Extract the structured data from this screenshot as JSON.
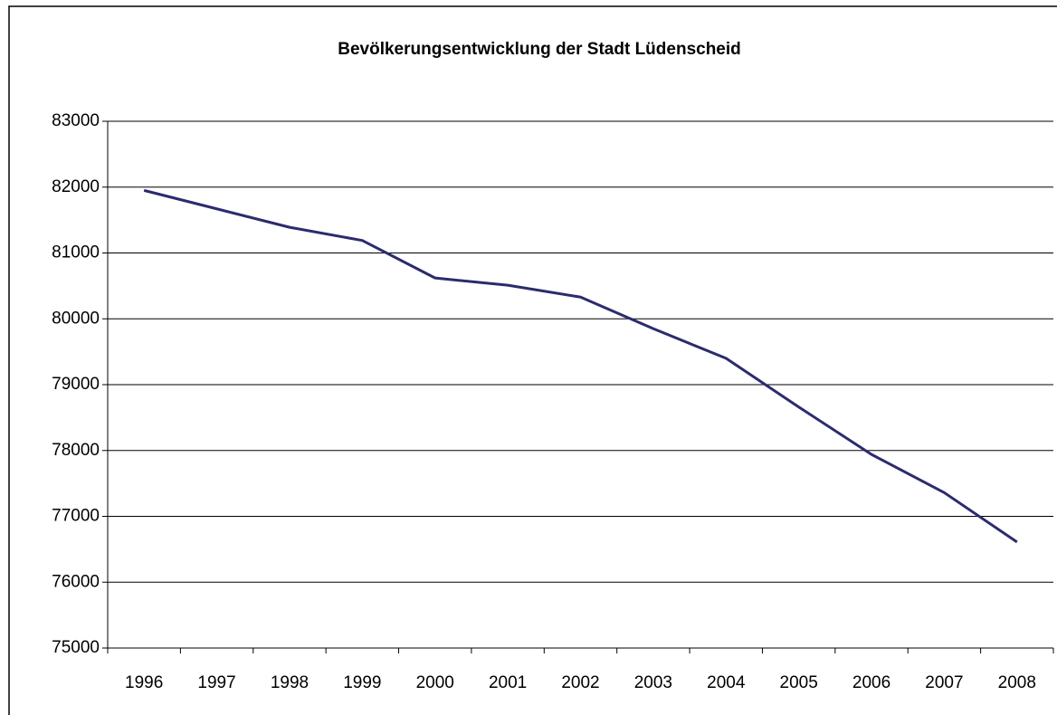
{
  "chart_data": {
    "type": "line",
    "title": "Bevölkerungsentwicklung der Stadt Lüdenscheid",
    "categories": [
      "1996",
      "1997",
      "1998",
      "1999",
      "2000",
      "2001",
      "2002",
      "2003",
      "2004",
      "2005",
      "2006",
      "2007",
      "2008"
    ],
    "values": [
      81950,
      81670,
      81390,
      81190,
      80620,
      80510,
      80330,
      79850,
      79400,
      78660,
      77940,
      77360,
      76610
    ],
    "color": "#2b2b6e",
    "ylim": [
      75000,
      83000
    ],
    "yticks": [
      75000,
      76000,
      77000,
      78000,
      79000,
      80000,
      81000,
      82000,
      83000
    ],
    "grid": true
  }
}
